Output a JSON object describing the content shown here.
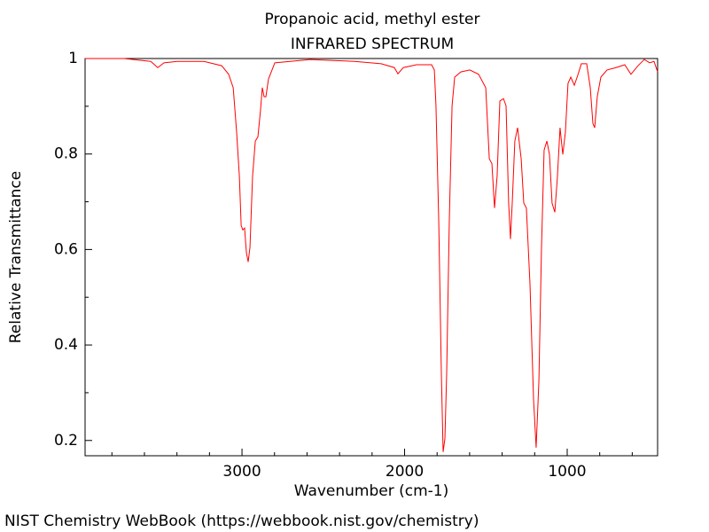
{
  "chart_data": {
    "type": "line",
    "title": "Propanoic acid, methyl ester",
    "subtitle": "INFRARED SPECTRUM",
    "x_label": "Wavenumber (cm-1)",
    "y_label": "Relative Transmittance",
    "xlim": [
      3965,
      444
    ],
    "ylim": [
      0.168,
      1.0
    ],
    "x_reversed": true,
    "xticks": [
      3000,
      2000,
      1000
    ],
    "xminorticks": [
      3800,
      3600,
      3400,
      3200,
      2800,
      2600,
      2400,
      2200,
      1800,
      1600,
      1400,
      1200,
      800,
      600
    ],
    "yticks": [
      0.2,
      0.4,
      0.6,
      0.8,
      1
    ],
    "yminorticks": [
      0.3,
      0.5,
      0.7,
      0.9
    ],
    "series": [
      {
        "color": "#ff0000",
        "x": [
          3965,
          3725,
          3561,
          3518,
          3480,
          3398,
          3234,
          3125,
          3082,
          3054,
          3033,
          3016,
          3005,
          2995,
          2984,
          2973,
          2962,
          2951,
          2935,
          2918,
          2902,
          2886,
          2875,
          2864,
          2853,
          2837,
          2798,
          2580,
          2308,
          2144,
          2063,
          2041,
          2008,
          1926,
          1834,
          1817,
          1807,
          1790,
          1774,
          1763,
          1752,
          1741,
          1725,
          1708,
          1692,
          1654,
          1599,
          1545,
          1501,
          1479,
          1463,
          1447,
          1431,
          1414,
          1392,
          1376,
          1360,
          1349,
          1338,
          1322,
          1305,
          1283,
          1267,
          1251,
          1229,
          1207,
          1191,
          1174,
          1158,
          1142,
          1125,
          1109,
          1093,
          1076,
          1060,
          1044,
          1027,
          1011,
          995,
          978,
          956,
          935,
          913,
          880,
          858,
          842,
          831,
          815,
          793,
          755,
          700,
          646,
          608,
          564,
          526,
          493,
          466,
          444
        ],
        "values": [
          1.0,
          1.0,
          0.994,
          0.981,
          0.991,
          0.994,
          0.994,
          0.985,
          0.967,
          0.939,
          0.846,
          0.753,
          0.65,
          0.641,
          0.645,
          0.594,
          0.574,
          0.604,
          0.753,
          0.827,
          0.836,
          0.892,
          0.939,
          0.92,
          0.92,
          0.957,
          0.991,
          0.998,
          0.994,
          0.989,
          0.981,
          0.968,
          0.981,
          0.987,
          0.987,
          0.976,
          0.901,
          0.66,
          0.343,
          0.176,
          0.204,
          0.343,
          0.66,
          0.901,
          0.961,
          0.972,
          0.976,
          0.967,
          0.939,
          0.79,
          0.78,
          0.687,
          0.753,
          0.911,
          0.916,
          0.901,
          0.697,
          0.622,
          0.697,
          0.827,
          0.855,
          0.79,
          0.697,
          0.687,
          0.529,
          0.287,
          0.185,
          0.325,
          0.604,
          0.808,
          0.827,
          0.799,
          0.697,
          0.678,
          0.753,
          0.855,
          0.799,
          0.846,
          0.948,
          0.961,
          0.944,
          0.965,
          0.989,
          0.989,
          0.939,
          0.864,
          0.855,
          0.92,
          0.961,
          0.976,
          0.981,
          0.987,
          0.967,
          0.985,
          0.998,
          0.991,
          0.994,
          0.972
        ]
      }
    ]
  },
  "footer": "NIST Chemistry WebBook (https://webbook.nist.gov/chemistry)"
}
